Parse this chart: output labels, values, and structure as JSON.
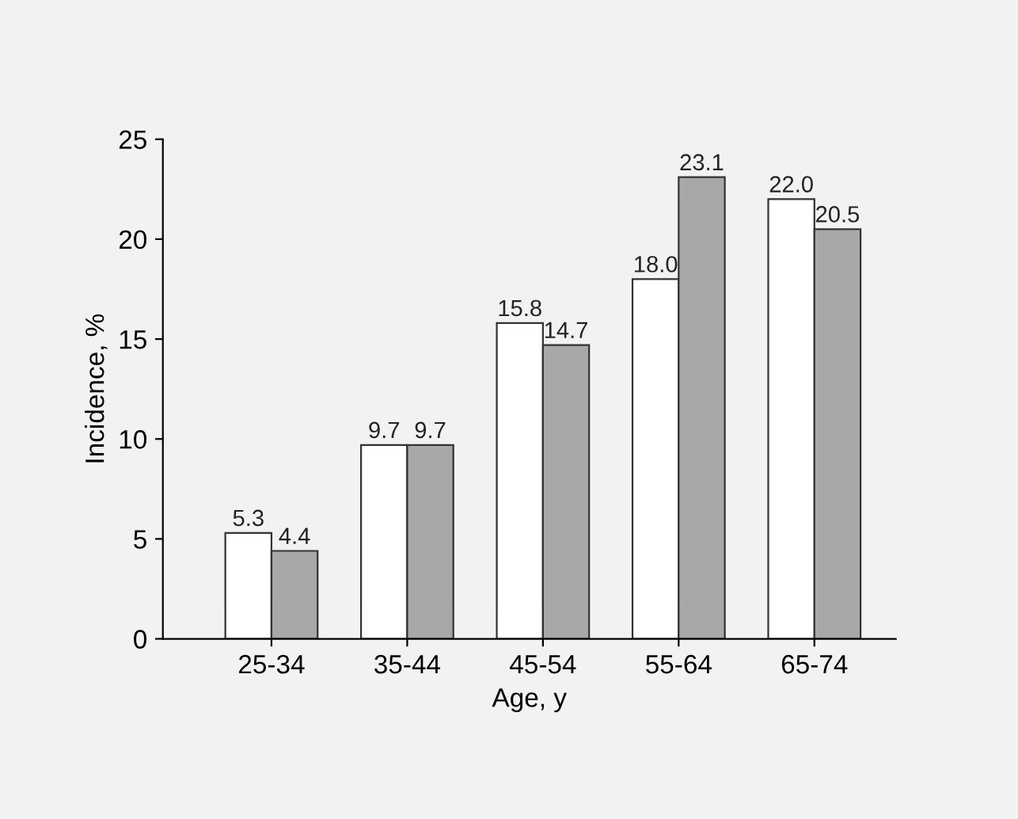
{
  "chart_data": {
    "type": "bar",
    "xlabel": "Age, y",
    "ylabel": "Incidence, %",
    "categories": [
      "25-34",
      "35-44",
      "45-54",
      "55-64",
      "65-74"
    ],
    "series": [
      {
        "color": "#ffffff",
        "values": [
          5.3,
          9.7,
          15.8,
          18.0,
          22.0
        ],
        "value_labels": [
          "5.3",
          "9.7",
          "15.8",
          "18.0",
          "22.0"
        ]
      },
      {
        "color": "#a8a8a8",
        "values": [
          4.4,
          9.7,
          14.7,
          23.1,
          20.5
        ],
        "value_labels": [
          "4.4",
          "9.7",
          "14.7",
          "23.1",
          "20.5"
        ]
      }
    ],
    "ylim": [
      0,
      25
    ],
    "yticks": [
      0,
      5,
      10,
      15,
      20,
      25
    ],
    "grid": false,
    "legend": false
  }
}
